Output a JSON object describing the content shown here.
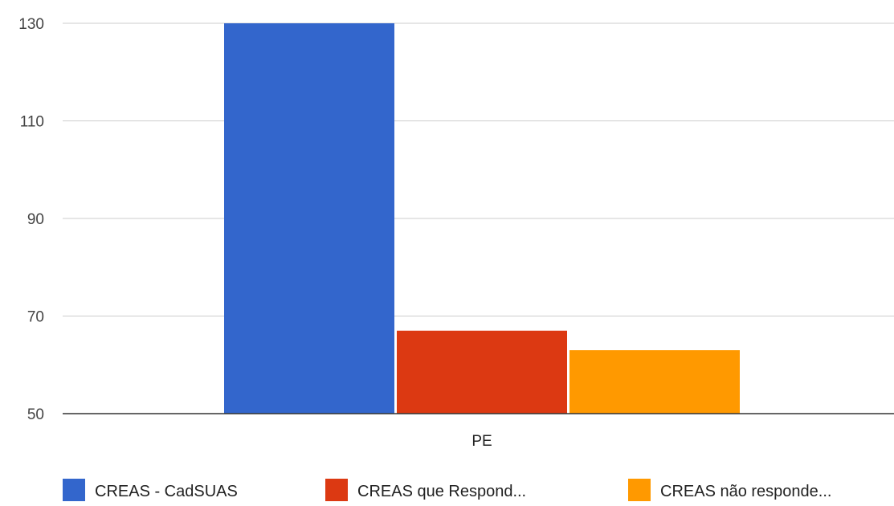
{
  "chart_data": {
    "type": "bar",
    "categories": [
      "PE"
    ],
    "series": [
      {
        "name": "CREAS - CadSUAS",
        "values": [
          130
        ],
        "color": "#3366cc"
      },
      {
        "name": "CREAS que Respond...",
        "values": [
          67
        ],
        "color": "#dc3912"
      },
      {
        "name": "CREAS não responde...",
        "values": [
          63
        ],
        "color": "#ff9900"
      }
    ],
    "ylim": [
      50,
      130
    ],
    "yticks": [
      "130",
      "110",
      "90",
      "70",
      "50"
    ],
    "grid": true,
    "legend_position": "bottom"
  }
}
